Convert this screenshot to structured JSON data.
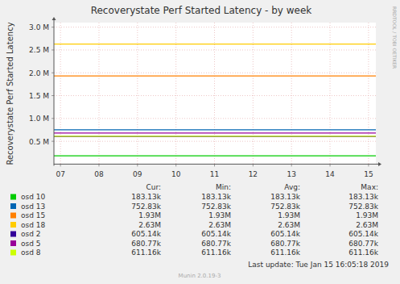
{
  "chart_data": {
    "type": "line",
    "title": "Recoverystate Perf Started Latency - by week",
    "y_label": "Recoverystate Perf Started Latency",
    "watermark": "RRDTOOL / TOBI OETIKER",
    "x": [
      6.83,
      7,
      8,
      9,
      10,
      11,
      12,
      13,
      14,
      15,
      15.19
    ],
    "xlim": [
      6.83,
      15.19
    ],
    "xticks": [
      {
        "value": 7,
        "label": "07"
      },
      {
        "value": 8,
        "label": "08"
      },
      {
        "value": 9,
        "label": "09"
      },
      {
        "value": 10,
        "label": "10"
      },
      {
        "value": 11,
        "label": "11"
      },
      {
        "value": 12,
        "label": "12"
      },
      {
        "value": 13,
        "label": "13"
      },
      {
        "value": 14,
        "label": "14"
      },
      {
        "value": 15,
        "label": "15"
      }
    ],
    "ylim": [
      0,
      3100000
    ],
    "yticks": [
      {
        "value": 500000,
        "label": "0.5 M"
      },
      {
        "value": 1000000,
        "label": "1.0 M"
      },
      {
        "value": 1500000,
        "label": "1.5 M"
      },
      {
        "value": 2000000,
        "label": "2.0 M"
      },
      {
        "value": 2500000,
        "label": "2.5 M"
      },
      {
        "value": 3000000,
        "label": "3.0 M"
      }
    ],
    "grid": true,
    "stats_header": [
      "Cur:",
      "Min:",
      "Avg:",
      "Max:"
    ],
    "series": [
      {
        "name": "osd 10",
        "color": "#00cc00",
        "values": [
          183130,
          183130,
          183130,
          183130,
          183130,
          183130,
          183130,
          183130,
          183130,
          183130,
          183130
        ],
        "stats": [
          183130,
          183130,
          183130,
          183130
        ],
        "stats_labels": [
          "183.13k",
          "183.13k",
          "183.13k",
          "183.13k"
        ]
      },
      {
        "name": "osd 13",
        "color": "#0066b3",
        "values": [
          752830,
          752830,
          752830,
          752830,
          752830,
          752830,
          752830,
          752830,
          752830,
          752830,
          752830
        ],
        "stats": [
          752830,
          752830,
          752830,
          752830
        ],
        "stats_labels": [
          "752.83k",
          "752.83k",
          "752.83k",
          "752.83k"
        ]
      },
      {
        "name": "osd 15",
        "color": "#ff8000",
        "values": [
          1930000,
          1930000,
          1930000,
          1930000,
          1930000,
          1930000,
          1930000,
          1930000,
          1930000,
          1930000,
          1930000
        ],
        "stats": [
          1930000,
          1930000,
          1930000,
          1930000
        ],
        "stats_labels": [
          "1.93M",
          "1.93M",
          "1.93M",
          "1.93M"
        ]
      },
      {
        "name": "osd 18",
        "color": "#ffcc00",
        "values": [
          2630000,
          2630000,
          2630000,
          2630000,
          2630000,
          2630000,
          2630000,
          2630000,
          2630000,
          2630000,
          2630000
        ],
        "stats": [
          2630000,
          2630000,
          2630000,
          2630000
        ],
        "stats_labels": [
          "2.63M",
          "2.63M",
          "2.63M",
          "2.63M"
        ]
      },
      {
        "name": "osd 2",
        "color": "#330099",
        "values": [
          605140,
          605140,
          605140,
          605140,
          605140,
          605140,
          605140,
          605140,
          605140,
          605140,
          605140
        ],
        "stats": [
          605140,
          605140,
          605140,
          605140
        ],
        "stats_labels": [
          "605.14k",
          "605.14k",
          "605.14k",
          "605.14k"
        ]
      },
      {
        "name": "osd 5",
        "color": "#990099",
        "values": [
          680770,
          680770,
          680770,
          680770,
          680770,
          680770,
          680770,
          680770,
          680770,
          680770,
          680770
        ],
        "stats": [
          680770,
          680770,
          680770,
          680770
        ],
        "stats_labels": [
          "680.77k",
          "680.77k",
          "680.77k",
          "680.77k"
        ]
      },
      {
        "name": "osd 8",
        "color": "#ccff00",
        "values": [
          611160,
          611160,
          611160,
          611160,
          611160,
          611160,
          611160,
          611160,
          611160,
          611160,
          611160
        ],
        "stats": [
          611160,
          611160,
          611160,
          611160
        ],
        "stats_labels": [
          "611.16k",
          "611.16k",
          "611.16k",
          "611.16k"
        ]
      }
    ],
    "last_update": "Last update:  Tue Jan 15 16:05:18 2019",
    "footer": "Munin 2.0.19-3"
  }
}
